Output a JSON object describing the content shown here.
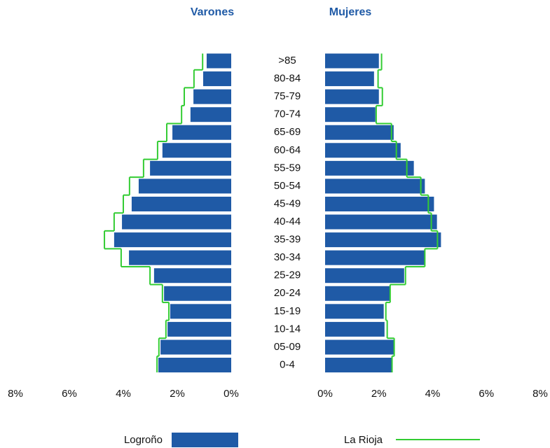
{
  "chart_data": {
    "type": "pyramid",
    "left_title": "Varones",
    "right_title": "Mujeres",
    "categories": [
      ">85",
      "80-84",
      "75-79",
      "70-74",
      "65-69",
      "60-64",
      "55-59",
      "50-54",
      "45-49",
      "40-44",
      "35-39",
      "30-34",
      "25-29",
      "20-24",
      "15-19",
      "10-14",
      "05-09",
      "0-4"
    ],
    "xlim": [
      0,
      8
    ],
    "xticks": [
      {
        "value": 0,
        "label": "0%"
      },
      {
        "value": 2,
        "label": "2%"
      },
      {
        "value": 4,
        "label": "4%"
      },
      {
        "value": 6,
        "label": "6%"
      },
      {
        "value": 8,
        "label": "8%"
      }
    ],
    "series": [
      {
        "name": "Logroño",
        "color": "#1f5aa6",
        "style": "bar",
        "male_values": [
          0.91,
          1.04,
          1.4,
          1.51,
          2.18,
          2.55,
          3.01,
          3.43,
          3.69,
          4.05,
          4.34,
          3.79,
          2.86,
          2.49,
          2.26,
          2.36,
          2.62,
          2.7
        ],
        "female_values": [
          2.0,
          1.82,
          2.0,
          1.87,
          2.55,
          2.81,
          3.3,
          3.71,
          4.05,
          4.16,
          4.31,
          3.71,
          2.94,
          2.42,
          2.18,
          2.21,
          2.57,
          2.49
        ]
      },
      {
        "name": "La Rioja",
        "color": "#33cc33",
        "style": "step",
        "male_values": [
          1.06,
          1.38,
          1.74,
          1.84,
          2.39,
          2.73,
          3.25,
          3.77,
          4.0,
          4.34,
          4.7,
          4.08,
          3.01,
          2.55,
          2.31,
          2.42,
          2.68,
          2.75
        ],
        "female_values": [
          2.1,
          1.97,
          2.13,
          1.9,
          2.47,
          2.65,
          3.04,
          3.56,
          3.84,
          3.95,
          4.18,
          3.71,
          2.99,
          2.42,
          2.26,
          2.31,
          2.57,
          2.49
        ]
      }
    ]
  }
}
